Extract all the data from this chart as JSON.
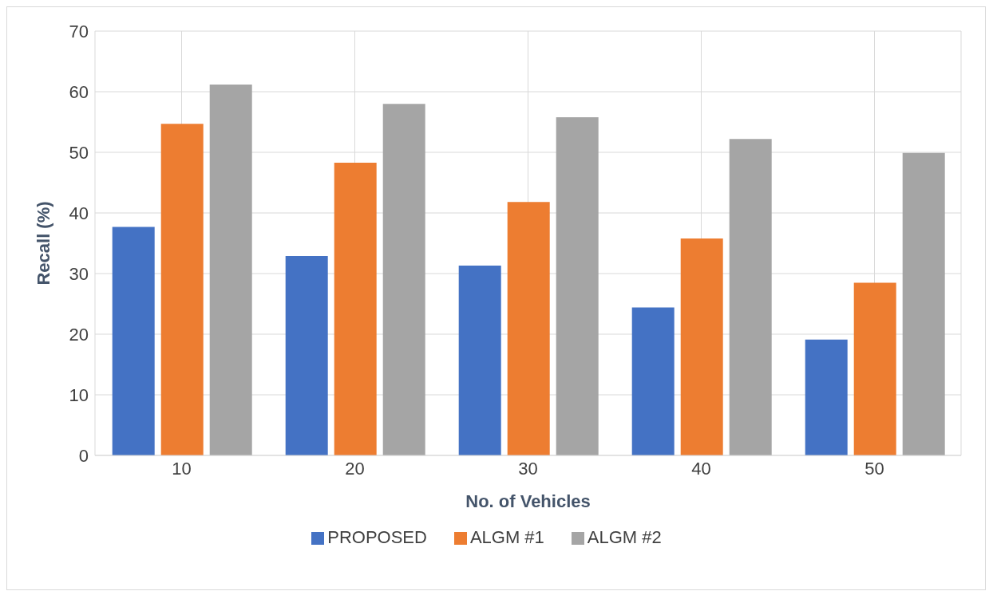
{
  "chart_data": {
    "type": "bar",
    "xlabel": "No. of Vehicles",
    "ylabel": "Recall (%)",
    "categories": [
      "10",
      "20",
      "30",
      "40",
      "50"
    ],
    "series": [
      {
        "name": "PROPOSED",
        "color": "#4472c4",
        "values": [
          37.7,
          32.9,
          31.3,
          24.4,
          19.1
        ]
      },
      {
        "name": "ALGM #1",
        "color": "#ed7d31",
        "values": [
          54.7,
          48.3,
          41.8,
          35.8,
          28.5
        ]
      },
      {
        "name": "ALGM #2",
        "color": "#a5a5a5",
        "values": [
          61.2,
          58.0,
          55.8,
          52.2,
          49.9
        ]
      }
    ],
    "ylim": [
      0,
      70
    ],
    "yticks": [
      0,
      10,
      20,
      30,
      40,
      50,
      60,
      70
    ],
    "grid": true,
    "legend": "bottom"
  }
}
